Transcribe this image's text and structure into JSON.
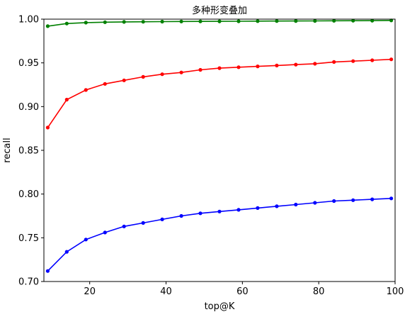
{
  "chart_data": {
    "type": "line",
    "title": "多种形变叠加",
    "xlabel": "top@K",
    "ylabel": "recall",
    "xlim": [
      8,
      100
    ],
    "ylim": [
      0.7,
      1.0
    ],
    "xticks": [
      20,
      40,
      60,
      80,
      100
    ],
    "xtick_labels": [
      "20",
      "40",
      "60",
      "80",
      "100"
    ],
    "yticks": [
      0.7,
      0.75,
      0.8,
      0.85,
      0.9,
      0.95,
      1.0
    ],
    "ytick_labels": [
      "0.70",
      "0.75",
      "0.80",
      "0.85",
      "0.90",
      "0.95",
      "1.00"
    ],
    "grid": false,
    "x": [
      9,
      14,
      19,
      24,
      29,
      34,
      39,
      44,
      49,
      54,
      59,
      64,
      69,
      74,
      79,
      84,
      89,
      94,
      99
    ],
    "series": [
      {
        "color": "#008000",
        "marker": "circle",
        "values": [
          0.992,
          0.995,
          0.996,
          0.9965,
          0.9968,
          0.997,
          0.9972,
          0.9973,
          0.9974,
          0.9975,
          0.9976,
          0.9977,
          0.9978,
          0.9979,
          0.998,
          0.9981,
          0.9982,
          0.9983,
          0.9985
        ]
      },
      {
        "color": "#ff0000",
        "marker": "circle",
        "values": [
          0.876,
          0.908,
          0.919,
          0.926,
          0.93,
          0.934,
          0.937,
          0.939,
          0.942,
          0.944,
          0.945,
          0.946,
          0.947,
          0.948,
          0.949,
          0.951,
          0.952,
          0.953,
          0.954
        ]
      },
      {
        "color": "#0000ff",
        "marker": "circle",
        "values": [
          0.712,
          0.734,
          0.748,
          0.756,
          0.763,
          0.767,
          0.771,
          0.775,
          0.778,
          0.78,
          0.782,
          0.784,
          0.786,
          0.788,
          0.79,
          0.792,
          0.793,
          0.794,
          0.795
        ]
      }
    ]
  }
}
